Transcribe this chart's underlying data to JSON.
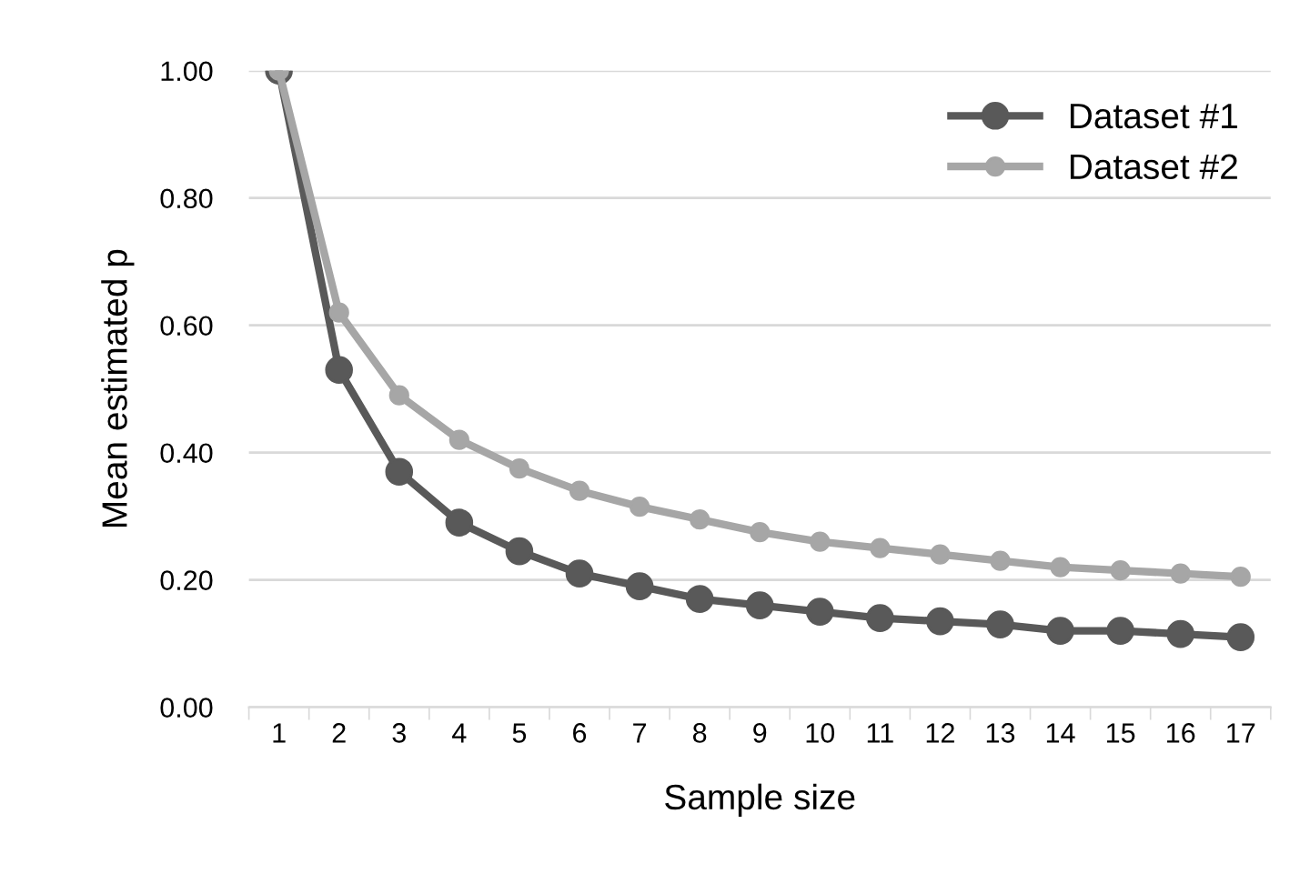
{
  "chart_data": {
    "type": "line",
    "xlabel": "Sample size",
    "ylabel": "Mean estimated p",
    "categories": [
      "1",
      "2",
      "3",
      "4",
      "5",
      "6",
      "7",
      "8",
      "9",
      "10",
      "11",
      "12",
      "13",
      "14",
      "15",
      "16",
      "17"
    ],
    "series": [
      {
        "name": "Dataset #1",
        "color": "#595959",
        "values": [
          1.0,
          0.53,
          0.37,
          0.29,
          0.245,
          0.21,
          0.19,
          0.17,
          0.16,
          0.15,
          0.14,
          0.135,
          0.13,
          0.12,
          0.12,
          0.115,
          0.11
        ]
      },
      {
        "name": "Dataset #2",
        "color": "#a6a6a6",
        "values": [
          1.0,
          0.62,
          0.49,
          0.42,
          0.375,
          0.34,
          0.315,
          0.295,
          0.275,
          0.26,
          0.25,
          0.24,
          0.23,
          0.22,
          0.215,
          0.21,
          0.205
        ]
      }
    ],
    "ylim": [
      0,
      1.0
    ],
    "yticks": [
      {
        "value": 0,
        "label": "0.00"
      },
      {
        "value": 0.2,
        "label": "0.20"
      },
      {
        "value": 0.4,
        "label": "0.40"
      },
      {
        "value": 0.6,
        "label": "0.60"
      },
      {
        "value": 0.8,
        "label": "0.80"
      },
      {
        "value": 1.0,
        "label": "1.00"
      }
    ],
    "grid": "y",
    "legend": "top right",
    "marker": "circle",
    "line_style": "solid"
  }
}
